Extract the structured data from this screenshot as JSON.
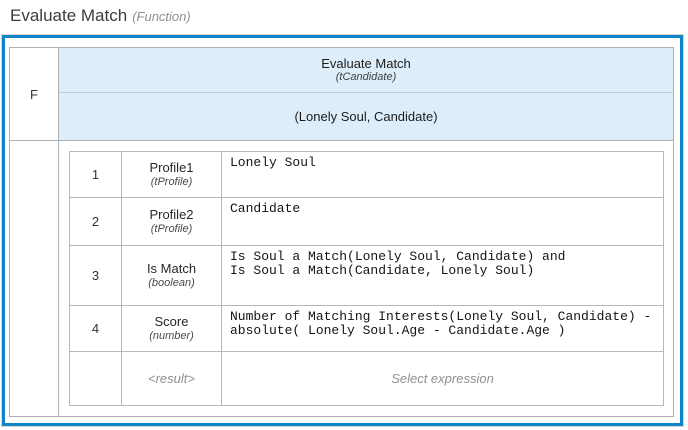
{
  "title": {
    "name": "Evaluate Match",
    "kind": "(Function)"
  },
  "function": {
    "kind_label": "F",
    "header": {
      "name": "Evaluate Match",
      "type": "(tCandidate)"
    },
    "parameters": "(Lonely Soul, Candidate)",
    "rows": [
      {
        "num": "1",
        "name": "Profile1",
        "type": "(tProfile)",
        "expression": "Lonely Soul"
      },
      {
        "num": "2",
        "name": "Profile2",
        "type": "(tProfile)",
        "expression": "Candidate"
      },
      {
        "num": "3",
        "name": "Is Match",
        "type": "(boolean)",
        "expression": "Is Soul a Match(Lonely Soul, Candidate) and\nIs Soul a Match(Candidate, Lonely Soul)"
      },
      {
        "num": "4",
        "name": "Score",
        "type": "(number)",
        "expression": "Number of Matching Interests(Lonely Soul, Candidate) -\nabsolute( Lonely Soul.Age - Candidate.Age )"
      }
    ],
    "result": {
      "label": "<result>",
      "placeholder": "Select expression"
    }
  },
  "colors": {
    "accent_border": "#0e85c8",
    "header_bg": "#ddeefa",
    "grid_border": "#b0b0b0",
    "muted_text": "#8e9092"
  }
}
